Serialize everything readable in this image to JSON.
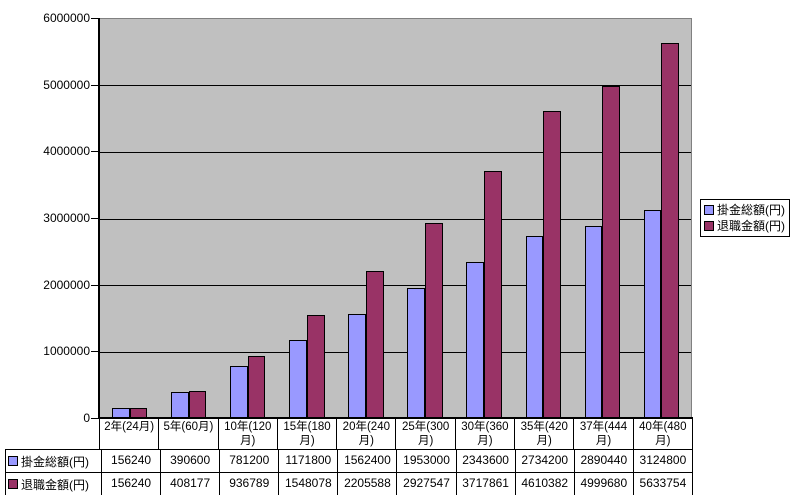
{
  "chart_data": {
    "type": "bar",
    "title": "",
    "xlabel": "",
    "ylabel": "",
    "categories": [
      "2年(24月)",
      "5年(60月)",
      "10年(120月)",
      "15年(180月)",
      "20年(240月)",
      "25年(300月)",
      "30年(360月)",
      "35年(420月)",
      "37年(444月)",
      "40年(480月)"
    ],
    "series": [
      {
        "name": "掛金総額(円)",
        "color": "#9999FF",
        "values": [
          156240,
          390600,
          781200,
          1171800,
          1562400,
          1953000,
          2343600,
          2734200,
          2890440,
          3124800
        ]
      },
      {
        "name": "退職金額(円)",
        "color": "#993366",
        "values": [
          156240,
          408177,
          936789,
          1548078,
          2205588,
          2927547,
          3717861,
          4610382,
          4999680,
          5633754
        ]
      }
    ],
    "ylim": [
      0,
      6000000
    ],
    "yticks": [
      0,
      1000000,
      2000000,
      3000000,
      4000000,
      5000000,
      6000000
    ],
    "grid": true,
    "legend_position": "right",
    "data_table": true,
    "colors": {
      "plot_background": "#C0C0C0",
      "gridline": "#000000",
      "bar_border": "#000000",
      "plot_outline": "#808080",
      "series1": "#9999FF",
      "series2": "#993366"
    }
  }
}
